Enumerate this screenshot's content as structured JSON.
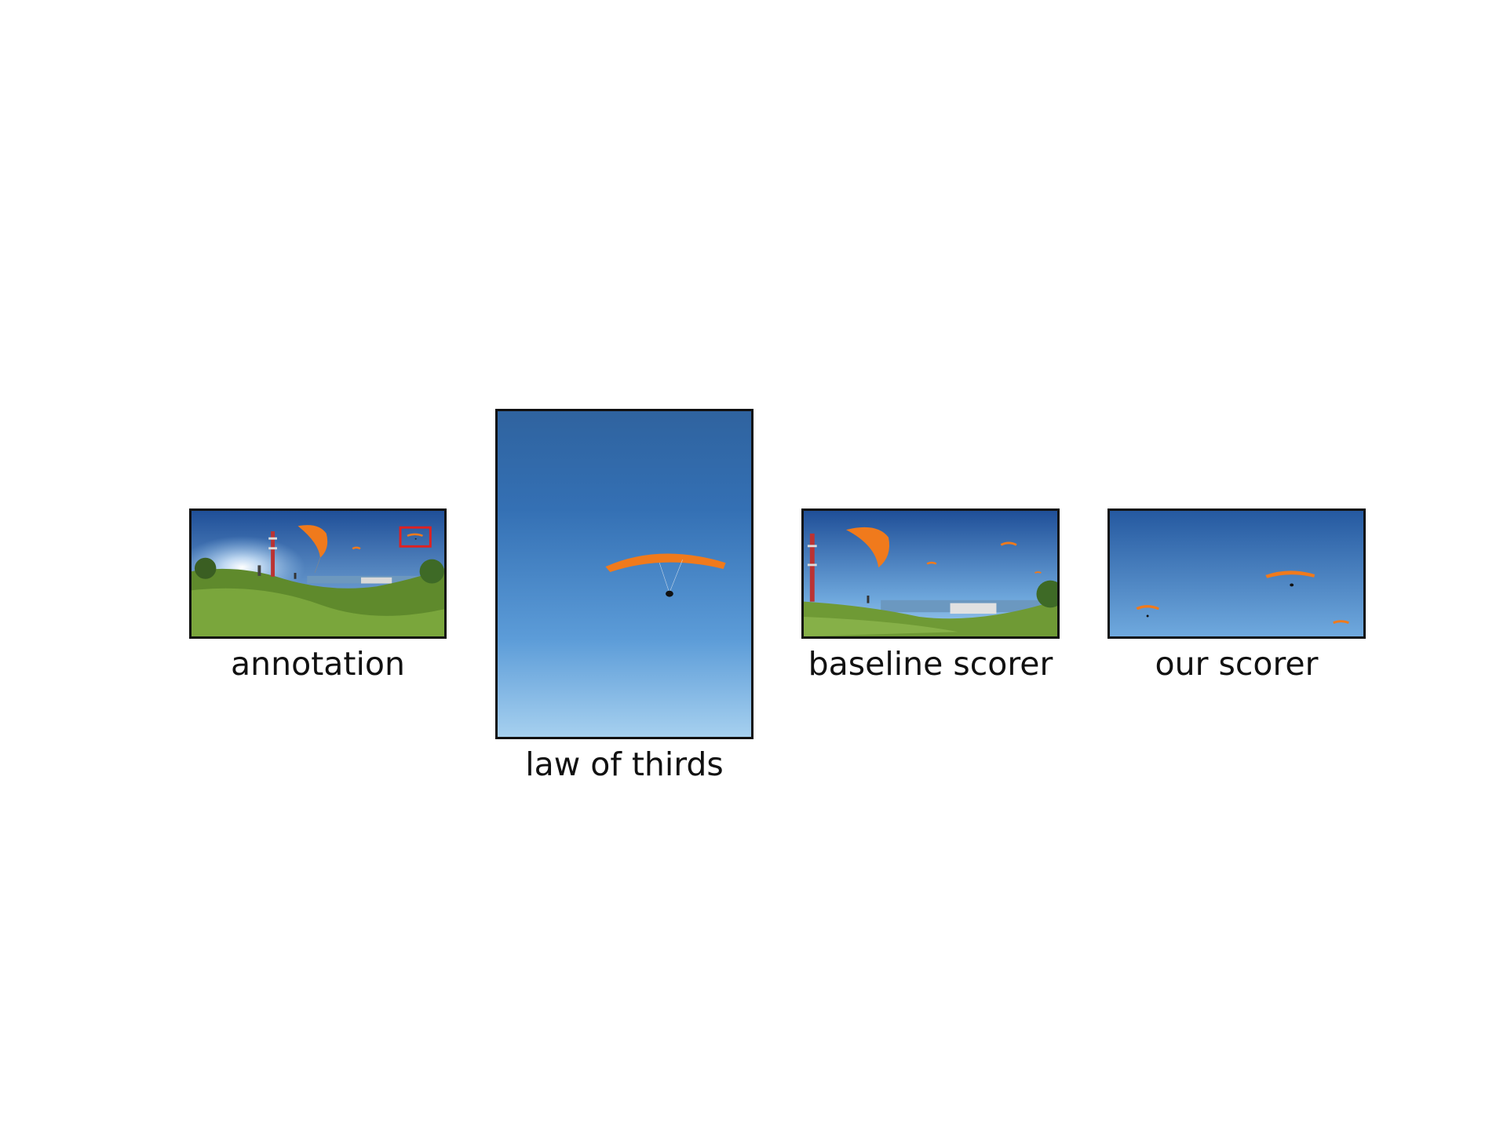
{
  "figure": {
    "panels": [
      {
        "caption": "annotation",
        "image": "360-panorama-paragliders-hillside",
        "highlight_color": "#e02020"
      },
      {
        "caption": "law of thirds",
        "image": "paraglider-blue-sky-portrait-crop"
      },
      {
        "caption": "baseline scorer",
        "image": "wide-crop-hillside-city-paragliders"
      },
      {
        "caption": "our scorer",
        "image": "sky-crop-three-paragliders"
      }
    ],
    "colors": {
      "sky_top": "#245aa0",
      "sky_bottom": "#8ec3ec",
      "canopy": "#f07a1c",
      "grass": "#6f9a35",
      "frame": "#111111"
    }
  }
}
